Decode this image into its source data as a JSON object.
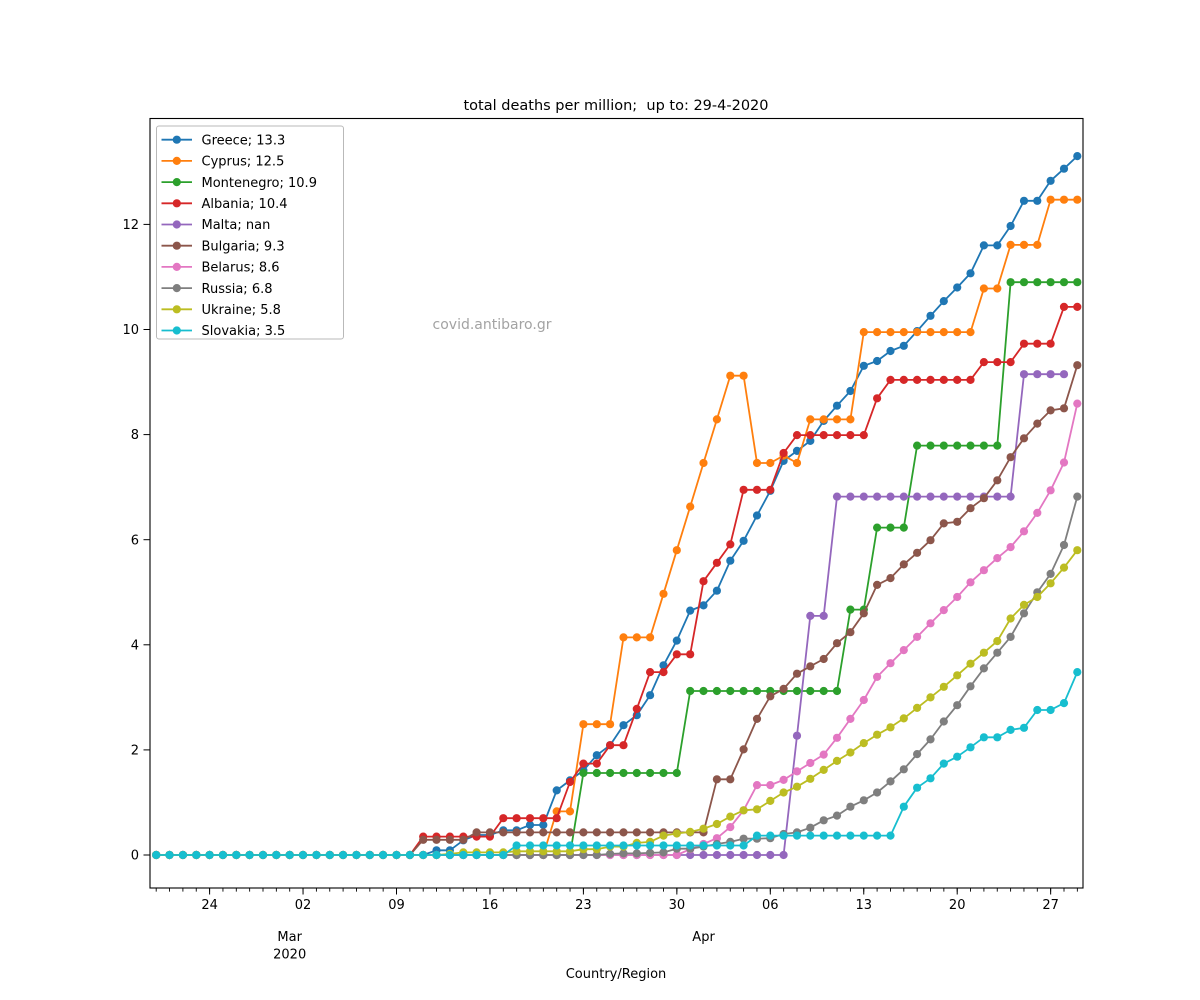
{
  "chart_data": {
    "type": "line",
    "title": "total deaths per million;  up to: 29-4-2020",
    "xlabel": "Country/Region",
    "watermark": "covid.antibaro.gr",
    "x_start": "2020-02-20",
    "x_end": "2020-04-29",
    "n_points": 70,
    "ylim": [
      -0.67,
      14.02
    ],
    "y_ticks": [
      0,
      2,
      4,
      6,
      8,
      10,
      12
    ],
    "x_major_ticks": [
      {
        "day_index": 4,
        "label": "24"
      },
      {
        "day_index": 11,
        "label": "02"
      },
      {
        "day_index": 18,
        "label": "09"
      },
      {
        "day_index": 25,
        "label": "16"
      },
      {
        "day_index": 32,
        "label": "23"
      },
      {
        "day_index": 39,
        "label": "30"
      },
      {
        "day_index": 46,
        "label": "06"
      },
      {
        "day_index": 53,
        "label": "13"
      },
      {
        "day_index": 60,
        "label": "20"
      },
      {
        "day_index": 67,
        "label": "27"
      }
    ],
    "x_month_labels": [
      {
        "day_index": 10,
        "label": "Mar",
        "year": "2020"
      },
      {
        "day_index": 41,
        "label": "Apr",
        "year": ""
      }
    ],
    "grid": false,
    "legend_position": "upper-left",
    "series": [
      {
        "name": "Greece",
        "legend_label": "Greece; 13.3",
        "final_value": 13.3,
        "color": "#1f77b4",
        "values": [
          0,
          0,
          0,
          0,
          0,
          0,
          0,
          0,
          0,
          0,
          0,
          0,
          0,
          0,
          0,
          0,
          0,
          0,
          0,
          0,
          0,
          0.09,
          0.09,
          0.28,
          0.38,
          0.38,
          0.47,
          0.47,
          0.57,
          0.57,
          1.23,
          1.42,
          1.61,
          1.9,
          2.09,
          2.47,
          2.66,
          3.04,
          3.61,
          4.08,
          4.65,
          4.75,
          5.03,
          5.6,
          5.98,
          6.46,
          6.93,
          7.5,
          7.69,
          7.88,
          8.26,
          8.55,
          8.83,
          9.31,
          9.4,
          9.59,
          9.69,
          9.97,
          10.26,
          10.54,
          10.8,
          11.07,
          11.6,
          11.6,
          11.97,
          12.45,
          12.45,
          12.83,
          13.06,
          13.3
        ]
      },
      {
        "name": "Cyprus",
        "legend_label": "Cyprus; 12.5",
        "final_value": 12.5,
        "color": "#ff7f0e",
        "values": [
          0,
          0,
          0,
          0,
          0,
          0,
          0,
          0,
          0,
          0,
          0,
          0,
          0,
          0,
          0,
          0,
          0,
          0,
          0,
          0,
          0,
          0,
          0,
          0,
          0,
          0,
          0,
          0,
          0,
          0,
          0.83,
          0.83,
          2.49,
          2.49,
          2.49,
          4.14,
          4.14,
          4.14,
          4.97,
          5.8,
          6.63,
          7.46,
          8.29,
          9.12,
          9.12,
          7.46,
          7.46,
          7.6,
          7.46,
          8.29,
          8.29,
          8.29,
          8.29,
          9.95,
          9.95,
          9.95,
          9.95,
          9.95,
          9.95,
          9.95,
          9.95,
          9.95,
          10.78,
          10.78,
          11.61,
          11.61,
          11.61,
          12.47,
          12.47,
          12.47
        ]
      },
      {
        "name": "Montenegro",
        "legend_label": "Montenegro; 10.9",
        "final_value": 10.9,
        "color": "#2ca02c",
        "values": [
          0,
          0,
          0,
          0,
          0,
          0,
          0,
          0,
          0,
          0,
          0,
          0,
          0,
          0,
          0,
          0,
          0,
          0,
          0,
          0,
          0,
          0,
          0,
          0,
          0,
          0,
          0,
          0,
          0,
          0,
          0,
          0,
          1.56,
          1.56,
          1.56,
          1.56,
          1.56,
          1.56,
          1.56,
          1.56,
          3.12,
          3.12,
          3.12,
          3.12,
          3.12,
          3.12,
          3.12,
          3.12,
          3.12,
          3.12,
          3.12,
          3.12,
          4.67,
          4.67,
          6.23,
          6.23,
          6.23,
          7.79,
          7.79,
          7.79,
          7.79,
          7.79,
          7.79,
          7.79,
          10.9,
          10.9,
          10.9,
          10.9,
          10.9,
          10.9
        ]
      },
      {
        "name": "Albania",
        "legend_label": "Albania; 10.4",
        "final_value": 10.4,
        "color": "#d62728",
        "values": [
          0,
          0,
          0,
          0,
          0,
          0,
          0,
          0,
          0,
          0,
          0,
          0,
          0,
          0,
          0,
          0,
          0,
          0,
          0,
          0,
          0.35,
          0.35,
          0.35,
          0.35,
          0.35,
          0.35,
          0.7,
          0.7,
          0.7,
          0.7,
          0.7,
          1.39,
          1.74,
          1.74,
          2.09,
          2.09,
          2.78,
          3.48,
          3.48,
          3.82,
          3.82,
          5.21,
          5.56,
          5.91,
          6.95,
          6.95,
          6.95,
          7.65,
          7.99,
          7.99,
          7.99,
          7.99,
          7.99,
          7.99,
          8.69,
          9.04,
          9.04,
          9.04,
          9.04,
          9.04,
          9.04,
          9.04,
          9.38,
          9.38,
          9.38,
          9.73,
          9.73,
          9.73,
          10.43,
          10.43
        ]
      },
      {
        "name": "Malta",
        "legend_label": "Malta; nan",
        "final_value": null,
        "color": "#9467bd",
        "values": [
          0,
          0,
          0,
          0,
          0,
          0,
          0,
          0,
          0,
          0,
          0,
          0,
          0,
          0,
          0,
          0,
          0,
          0,
          0,
          0,
          0,
          0,
          0,
          0,
          0,
          0,
          0,
          0,
          0,
          0,
          0,
          0,
          0,
          0,
          0,
          0,
          0,
          0,
          0,
          0,
          0,
          0,
          0,
          0,
          0,
          0,
          0,
          0,
          2.27,
          4.55,
          4.55,
          6.82,
          6.82,
          6.82,
          6.82,
          6.82,
          6.82,
          6.82,
          6.82,
          6.82,
          6.82,
          6.82,
          6.82,
          6.82,
          6.82,
          9.15,
          9.15,
          9.15,
          9.15,
          null
        ]
      },
      {
        "name": "Bulgaria",
        "legend_label": "Bulgaria; 9.3",
        "final_value": 9.3,
        "color": "#8c564b",
        "values": [
          0,
          0,
          0,
          0,
          0,
          0,
          0,
          0,
          0,
          0,
          0,
          0,
          0,
          0,
          0,
          0,
          0,
          0,
          0,
          0,
          0.29,
          0.29,
          0.29,
          0.29,
          0.43,
          0.43,
          0.43,
          0.43,
          0.43,
          0.43,
          0.43,
          0.43,
          0.43,
          0.43,
          0.43,
          0.43,
          0.43,
          0.43,
          0.43,
          0.43,
          0.43,
          0.43,
          1.44,
          1.44,
          2.01,
          2.59,
          3.02,
          3.16,
          3.45,
          3.59,
          3.73,
          4.03,
          4.24,
          4.6,
          5.14,
          5.27,
          5.53,
          5.75,
          5.99,
          6.31,
          6.34,
          6.6,
          6.79,
          7.13,
          7.57,
          7.93,
          8.21,
          8.46,
          8.5,
          9.32
        ]
      },
      {
        "name": "Belarus",
        "legend_label": "Belarus; 8.6",
        "final_value": 8.6,
        "color": "#e377c2",
        "values": [
          0,
          0,
          0,
          0,
          0,
          0,
          0,
          0,
          0,
          0,
          0,
          0,
          0,
          0,
          0,
          0,
          0,
          0,
          0,
          0,
          0,
          0,
          0,
          0,
          0,
          0,
          0,
          0,
          0,
          0,
          0,
          0,
          0,
          0,
          0,
          0,
          0,
          0,
          0,
          0,
          0.11,
          0.21,
          0.32,
          0.53,
          0.85,
          1.33,
          1.33,
          1.43,
          1.59,
          1.75,
          1.91,
          2.23,
          2.59,
          2.95,
          3.39,
          3.65,
          3.9,
          4.15,
          4.41,
          4.66,
          4.91,
          5.19,
          5.42,
          5.65,
          5.86,
          6.16,
          6.51,
          6.94,
          7.47,
          8.59
        ]
      },
      {
        "name": "Russia",
        "legend_label": "Russia; 6.8",
        "final_value": 6.8,
        "color": "#7f7f7f",
        "values": [
          0,
          0,
          0,
          0,
          0,
          0,
          0,
          0,
          0,
          0,
          0,
          0,
          0,
          0,
          0,
          0,
          0,
          0,
          0,
          0,
          0,
          0,
          0,
          0,
          0,
          0,
          0,
          0,
          0,
          0,
          0,
          0,
          0,
          0,
          0.02,
          0.03,
          0.03,
          0.04,
          0.05,
          0.12,
          0.12,
          0.16,
          0.21,
          0.25,
          0.31,
          0.31,
          0.32,
          0.4,
          0.43,
          0.52,
          0.66,
          0.75,
          0.92,
          1.04,
          1.19,
          1.4,
          1.63,
          1.92,
          2.2,
          2.54,
          2.85,
          3.21,
          3.55,
          3.85,
          4.15,
          4.6,
          5.0,
          5.35,
          5.9,
          6.82
        ]
      },
      {
        "name": "Ukraine",
        "legend_label": "Ukraine; 5.8",
        "final_value": 5.8,
        "color": "#bcbd22",
        "values": [
          0,
          0,
          0,
          0,
          0,
          0,
          0,
          0,
          0,
          0,
          0,
          0,
          0,
          0,
          0,
          0,
          0,
          0,
          0,
          0,
          0,
          0,
          0.02,
          0.05,
          0.05,
          0.05,
          0.05,
          0.07,
          0.07,
          0.07,
          0.07,
          0.07,
          0.11,
          0.11,
          0.16,
          0.16,
          0.23,
          0.25,
          0.37,
          0.41,
          0.44,
          0.5,
          0.59,
          0.73,
          0.85,
          0.87,
          1.03,
          1.19,
          1.3,
          1.45,
          1.62,
          1.79,
          1.95,
          2.13,
          2.29,
          2.43,
          2.6,
          2.8,
          3.0,
          3.2,
          3.42,
          3.64,
          3.85,
          4.07,
          4.5,
          4.76,
          4.91,
          5.17,
          5.47,
          5.8
        ]
      },
      {
        "name": "Slovakia",
        "legend_label": "Slovakia; 3.5",
        "final_value": 3.5,
        "color": "#17becf",
        "values": [
          0,
          0,
          0,
          0,
          0,
          0,
          0,
          0,
          0,
          0,
          0,
          0,
          0,
          0,
          0,
          0,
          0,
          0,
          0,
          0,
          0,
          0,
          0,
          0,
          0,
          0,
          0,
          0.18,
          0.18,
          0.18,
          0.18,
          0.18,
          0.18,
          0.18,
          0.18,
          0.18,
          0.18,
          0.18,
          0.18,
          0.18,
          0.18,
          0.18,
          0.18,
          0.18,
          0.18,
          0.37,
          0.37,
          0.37,
          0.37,
          0.37,
          0.37,
          0.37,
          0.37,
          0.37,
          0.37,
          0.37,
          0.92,
          1.28,
          1.46,
          1.74,
          1.87,
          2.05,
          2.24,
          2.24,
          2.38,
          2.42,
          2.76,
          2.76,
          2.89,
          3.48
        ]
      }
    ]
  }
}
